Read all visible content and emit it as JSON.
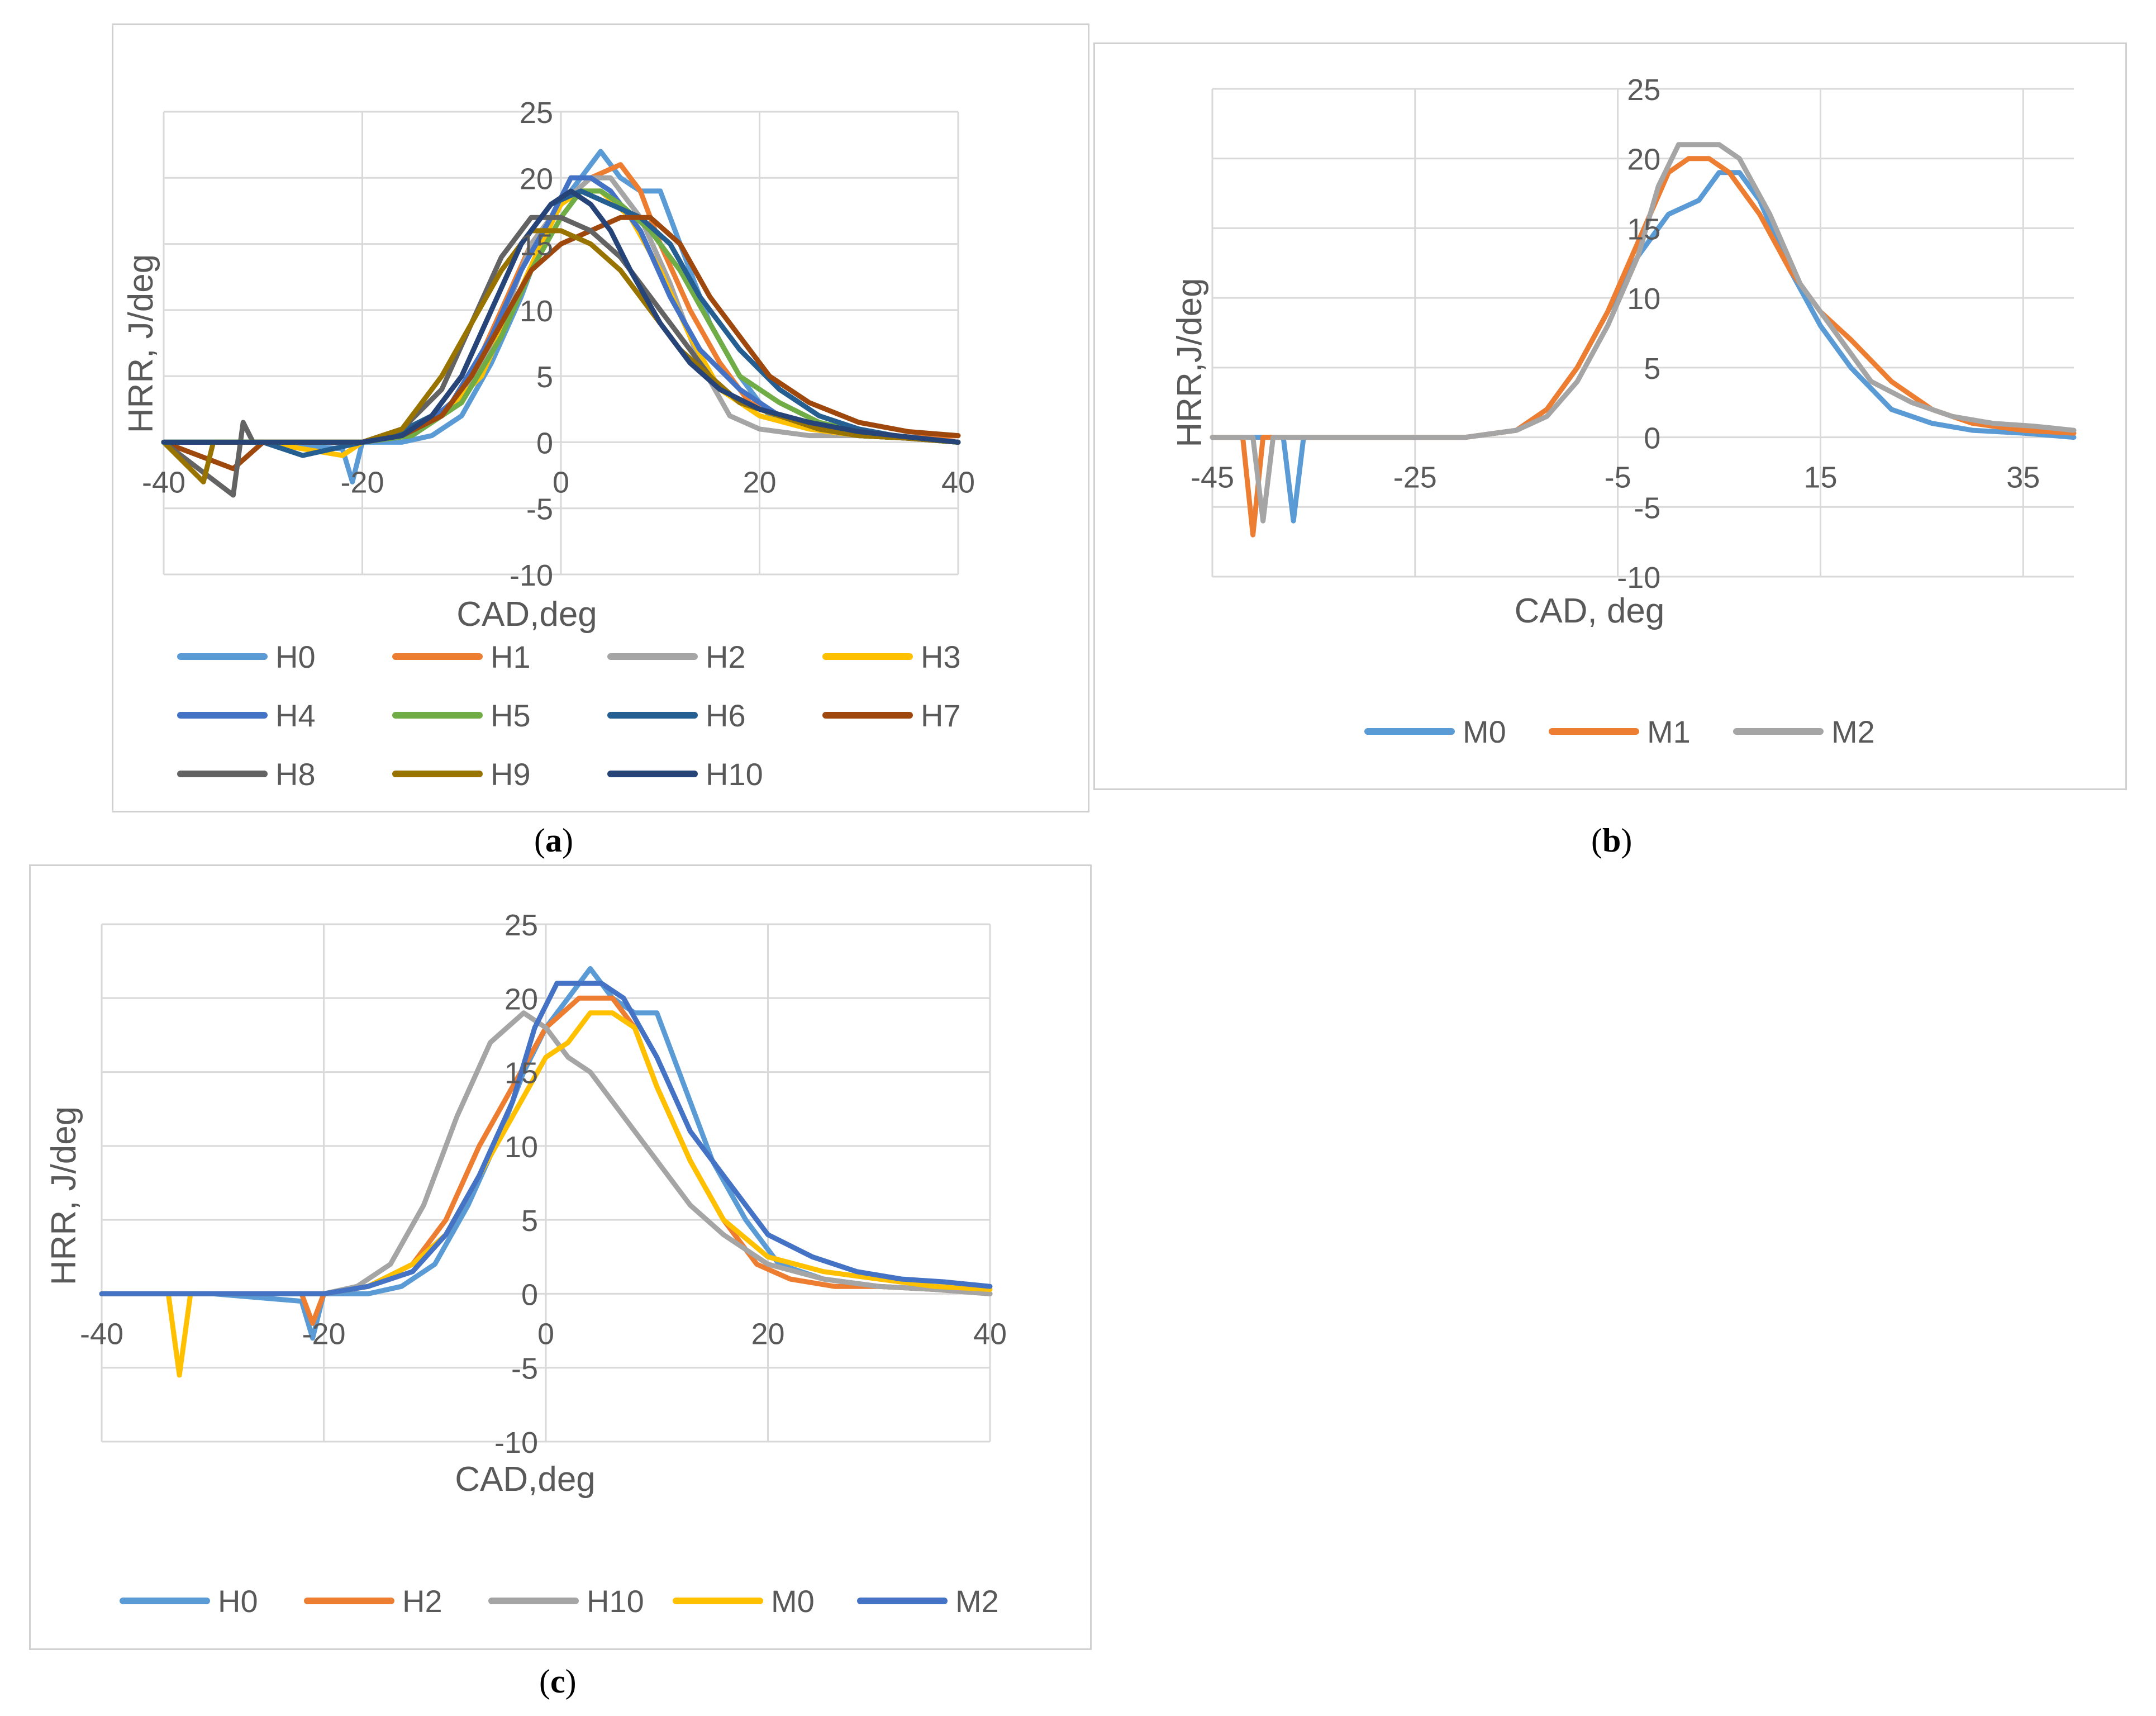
{
  "captions": [
    {
      "open": "(",
      "letter": "a",
      "close": ")"
    },
    {
      "open": "(",
      "letter": "b",
      "close": ")"
    },
    {
      "open": "(",
      "letter": "c",
      "close": ")"
    }
  ],
  "chart_data": [
    {
      "type": "line",
      "id": "a",
      "title": "",
      "xlabel": "CAD,deg",
      "ylabel": "HRR, J/deg",
      "xlim": [
        -40,
        40
      ],
      "ylim": [
        -10,
        25
      ],
      "xticks": [
        -40,
        -20,
        0,
        20,
        40
      ],
      "yticks": [
        -10,
        -5,
        0,
        5,
        10,
        15,
        20,
        25
      ],
      "legend_position": "bottom",
      "series": [
        {
          "name": "H0",
          "color": "#5b9bd5",
          "x": [
            -40,
            -30,
            -22,
            -21,
            -20,
            -16,
            -13,
            -10,
            -7,
            -4,
            -2,
            0,
            2,
            4,
            6,
            8,
            10,
            12,
            15,
            18,
            21,
            25,
            30,
            35,
            40
          ],
          "y": [
            0,
            0,
            -0.5,
            -3,
            0,
            0,
            0.5,
            2,
            6,
            11,
            15,
            18,
            20,
            22,
            20,
            19,
            19,
            15,
            9,
            5,
            2,
            1,
            0.5,
            0.3,
            0
          ]
        },
        {
          "name": "H1",
          "color": "#ed7d31",
          "x": [
            -40,
            -30,
            -20,
            -16,
            -12,
            -9,
            -6,
            -3,
            0,
            3,
            6,
            8,
            10,
            13,
            16,
            19,
            22,
            26,
            30,
            35,
            40
          ],
          "y": [
            0,
            0,
            0,
            0.5,
            2,
            5,
            10,
            15,
            18,
            20,
            21,
            19,
            15,
            10,
            6,
            3,
            2,
            1,
            0.5,
            0.3,
            0.5
          ]
        },
        {
          "name": "H2",
          "color": "#a5a5a5",
          "x": [
            -40,
            -30,
            -20,
            -15,
            -10,
            -6,
            -3,
            0,
            3,
            5,
            8,
            11,
            14,
            17,
            20,
            25,
            30,
            35,
            40
          ],
          "y": [
            0,
            0,
            0,
            0.5,
            3,
            9,
            15,
            18,
            20,
            20,
            17,
            12,
            6,
            2,
            1,
            0.5,
            0.5,
            0.3,
            0
          ]
        },
        {
          "name": "H3",
          "color": "#ffc000",
          "x": [
            -40,
            -30,
            -22,
            -20,
            -16,
            -12,
            -8,
            -5,
            -2,
            0,
            2,
            4,
            7,
            10,
            13,
            16,
            20,
            25,
            30,
            35,
            40
          ],
          "y": [
            0,
            0,
            -1,
            0,
            0.5,
            2,
            5,
            10,
            15,
            18,
            19,
            19,
            17,
            13,
            8,
            4,
            2,
            1,
            0.5,
            0.3,
            0
          ]
        },
        {
          "name": "H4",
          "color": "#4472c4",
          "x": [
            -40,
            -30,
            -20,
            -15,
            -11,
            -7,
            -4,
            -1,
            1,
            3,
            5,
            8,
            11,
            14,
            18,
            22,
            26,
            30,
            35,
            40
          ],
          "y": [
            0,
            0,
            0,
            0.5,
            3,
            8,
            13,
            17,
            20,
            20,
            19,
            16,
            11,
            7,
            4,
            2,
            1,
            0.5,
            0.3,
            0
          ]
        },
        {
          "name": "H5",
          "color": "#70ad47",
          "x": [
            -40,
            -30,
            -20,
            -15,
            -10,
            -6,
            -3,
            0,
            2,
            4,
            6,
            9,
            12,
            15,
            18,
            22,
            26,
            30,
            35,
            40
          ],
          "y": [
            0,
            0,
            0,
            0.5,
            3,
            8,
            13,
            17,
            19,
            19,
            18,
            16,
            13,
            9,
            5,
            3,
            1.5,
            0.8,
            0.3,
            0
          ]
        },
        {
          "name": "H6",
          "color": "#255e91",
          "x": [
            -40,
            -30,
            -26,
            -20,
            -17,
            -13,
            -10,
            -7,
            -4,
            -1,
            2,
            5,
            8,
            11,
            14,
            18,
            22,
            26,
            30,
            35,
            40
          ],
          "y": [
            0,
            0,
            -1,
            0,
            0.5,
            2,
            5,
            10,
            15,
            18,
            19,
            18,
            17,
            15,
            11,
            7,
            4,
            2,
            1,
            0.3,
            0
          ]
        },
        {
          "name": "H7",
          "color": "#9e480e",
          "x": [
            -40,
            -33,
            -30,
            -20,
            -16,
            -12,
            -9,
            -6,
            -3,
            0,
            3,
            6,
            9,
            12,
            15,
            18,
            21,
            25,
            30,
            35,
            40
          ],
          "y": [
            0,
            -2,
            0,
            0,
            0.5,
            2,
            5,
            9,
            13,
            15,
            16,
            17,
            17,
            15,
            11,
            8,
            5,
            3,
            1.5,
            0.8,
            0.5
          ]
        },
        {
          "name": "H8",
          "color": "#636363",
          "x": [
            -40,
            -33,
            -32,
            -31,
            -20,
            -16,
            -12,
            -9,
            -6,
            -3,
            0,
            3,
            6,
            9,
            12,
            15,
            18,
            22,
            26,
            30,
            35,
            40
          ],
          "y": [
            0,
            -4,
            1.5,
            0,
            0,
            1,
            4,
            9,
            14,
            17,
            17,
            16,
            14,
            11,
            8,
            5,
            3,
            2,
            1,
            0.5,
            0.3,
            0
          ]
        },
        {
          "name": "H9",
          "color": "#997300",
          "x": [
            -40,
            -36,
            -35,
            -30,
            -20,
            -16,
            -12,
            -9,
            -6,
            -3,
            0,
            3,
            6,
            9,
            12,
            15,
            18,
            22,
            26,
            30,
            35,
            40
          ],
          "y": [
            0,
            -3,
            0,
            0,
            0,
            1,
            5,
            9,
            13,
            16,
            16,
            15,
            13,
            10,
            7,
            5,
            3,
            2,
            1,
            0.5,
            0.3,
            0
          ]
        },
        {
          "name": "H10",
          "color": "#264478",
          "x": [
            -40,
            -30,
            -20,
            -16,
            -13,
            -10,
            -7,
            -4,
            -1,
            1,
            3,
            5,
            7,
            10,
            13,
            16,
            20,
            25,
            30,
            35,
            40
          ],
          "y": [
            0,
            0,
            0,
            0.5,
            2,
            5,
            10,
            15,
            18,
            19,
            18,
            16,
            13,
            9,
            6,
            4,
            2.5,
            1.5,
            0.8,
            0.4,
            0
          ]
        }
      ]
    },
    {
      "type": "line",
      "id": "b",
      "title": "",
      "xlabel": "CAD, deg",
      "ylabel": "HRR,J/deg",
      "xlim": [
        -45,
        40
      ],
      "ylim": [
        -10,
        25
      ],
      "xticks": [
        -45,
        -25,
        -5,
        15,
        35
      ],
      "yticks": [
        -10,
        -5,
        0,
        5,
        10,
        15,
        20,
        25
      ],
      "legend_position": "bottom",
      "series": [
        {
          "name": "M0",
          "color": "#5b9bd5",
          "x": [
            -45,
            -38,
            -37,
            -36,
            -30,
            -20,
            -15,
            -12,
            -9,
            -6,
            -3,
            0,
            3,
            5,
            7,
            9,
            12,
            15,
            18,
            22,
            26,
            30,
            35,
            40
          ],
          "y": [
            0,
            0,
            -6,
            0,
            0,
            0,
            0.5,
            2,
            5,
            9,
            13,
            16,
            17,
            19,
            19,
            17,
            12,
            8,
            5,
            2,
            1,
            0.5,
            0.3,
            0
          ]
        },
        {
          "name": "M1",
          "color": "#ed7d31",
          "x": [
            -45,
            -42,
            -41,
            -40,
            -30,
            -20,
            -15,
            -12,
            -9,
            -6,
            -3,
            0,
            2,
            4,
            6,
            9,
            12,
            15,
            18,
            22,
            26,
            30,
            35,
            40
          ],
          "y": [
            0,
            0,
            -7,
            0,
            0,
            0,
            0.5,
            2,
            5,
            9,
            14,
            19,
            20,
            20,
            19,
            16,
            12,
            9,
            7,
            4,
            2,
            1,
            0.5,
            0.3
          ]
        },
        {
          "name": "M2",
          "color": "#a5a5a5",
          "x": [
            -45,
            -41,
            -40,
            -39,
            -30,
            -20,
            -15,
            -12,
            -9,
            -6,
            -3,
            -1,
            1,
            3,
            5,
            7,
            10,
            13,
            16,
            20,
            24,
            28,
            32,
            36,
            40
          ],
          "y": [
            0,
            0,
            -6,
            0,
            0,
            0,
            0.5,
            1.5,
            4,
            8,
            13,
            18,
            21,
            21,
            21,
            20,
            16,
            11,
            8,
            4,
            2.5,
            1.5,
            1,
            0.8,
            0.5
          ]
        }
      ]
    },
    {
      "type": "line",
      "id": "c",
      "title": "",
      "xlabel": "CAD,deg",
      "ylabel": "HRR, J/deg",
      "xlim": [
        -40,
        40
      ],
      "ylim": [
        -10,
        25
      ],
      "xticks": [
        -40,
        -20,
        0,
        20,
        40
      ],
      "yticks": [
        -10,
        -5,
        0,
        5,
        10,
        15,
        20,
        25
      ],
      "legend_position": "bottom",
      "series": [
        {
          "name": "H0",
          "color": "#5b9bd5",
          "x": [
            -40,
            -30,
            -22,
            -21,
            -20,
            -16,
            -13,
            -10,
            -7,
            -4,
            -2,
            0,
            2,
            4,
            6,
            8,
            10,
            12,
            15,
            18,
            21,
            25,
            30,
            35,
            40
          ],
          "y": [
            0,
            0,
            -0.5,
            -3,
            0,
            0,
            0.5,
            2,
            6,
            11,
            15,
            18,
            20,
            22,
            20,
            19,
            19,
            15,
            9,
            5,
            2,
            1,
            0.5,
            0.3,
            0
          ]
        },
        {
          "name": "H2",
          "color": "#ed7d31",
          "x": [
            -40,
            -30,
            -22,
            -21,
            -20,
            -16,
            -12,
            -9,
            -6,
            -3,
            0,
            3,
            6,
            8,
            10,
            13,
            16,
            19,
            22,
            26,
            30,
            35,
            40
          ],
          "y": [
            0,
            0,
            0,
            -2,
            0,
            0.5,
            2,
            5,
            10,
            14,
            18,
            20,
            20,
            18,
            14,
            9,
            5,
            2,
            1,
            0.5,
            0.5,
            0.3,
            0
          ]
        },
        {
          "name": "H10",
          "color": "#a5a5a5",
          "x": [
            -40,
            -30,
            -20,
            -17,
            -14,
            -11,
            -8,
            -5,
            -2,
            0,
            2,
            4,
            6,
            8,
            10,
            13,
            16,
            20,
            25,
            30,
            35,
            40
          ],
          "y": [
            0,
            0,
            0,
            0.5,
            2,
            6,
            12,
            17,
            19,
            18,
            16,
            15,
            13,
            11,
            9,
            6,
            4,
            2,
            1,
            0.5,
            0.3,
            0
          ]
        },
        {
          "name": "M0",
          "color": "#ffc000",
          "x": [
            -40,
            -34,
            -33,
            -32,
            -30,
            -20,
            -16,
            -12,
            -9,
            -6,
            -3,
            0,
            2,
            4,
            6,
            8,
            10,
            13,
            16,
            20,
            25,
            30,
            35,
            40
          ],
          "y": [
            0,
            0,
            -5.5,
            0,
            0,
            0,
            0.5,
            2,
            4,
            8,
            12,
            16,
            17,
            19,
            19,
            18,
            14,
            9,
            5,
            2.5,
            1.5,
            1,
            0.5,
            0.3
          ]
        },
        {
          "name": "M2",
          "color": "#4472c4",
          "x": [
            -40,
            -30,
            -20,
            -16,
            -12,
            -9,
            -6,
            -3,
            -1,
            1,
            3,
            5,
            7,
            10,
            13,
            16,
            20,
            24,
            28,
            32,
            36,
            40
          ],
          "y": [
            0,
            0,
            0,
            0.5,
            1.5,
            4,
            8,
            13,
            18,
            21,
            21,
            21,
            20,
            16,
            11,
            8,
            4,
            2.5,
            1.5,
            1,
            0.8,
            0.5
          ]
        }
      ]
    }
  ]
}
